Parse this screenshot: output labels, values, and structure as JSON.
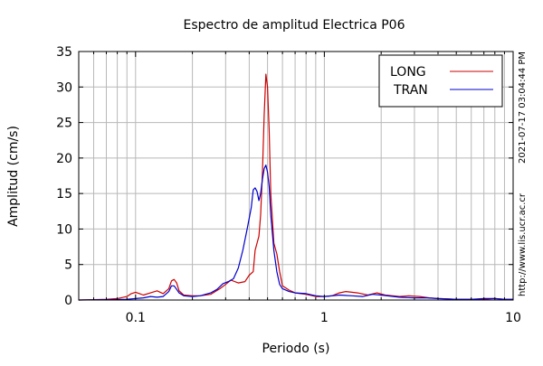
{
  "chart_data": {
    "type": "line",
    "title": "Espectro de amplitud Electrica P06",
    "xlabel": "Periodo (s)",
    "ylabel": "Amplitud (cm/s)",
    "x_scale": "log",
    "xlim": [
      0.05,
      10
    ],
    "ylim": [
      0,
      35
    ],
    "x_ticks": [
      0.1,
      1,
      10
    ],
    "x_tick_labels": [
      "0.1",
      "1",
      "10"
    ],
    "y_ticks": [
      0,
      5,
      10,
      15,
      20,
      25,
      30,
      35
    ],
    "y_tick_labels": [
      "0",
      "5",
      "10",
      "15",
      "20",
      "25",
      "30",
      "35"
    ],
    "grid": true,
    "legend_position": "top-right",
    "series": [
      {
        "name": "LONG",
        "color": "#cc0000",
        "points": [
          [
            0.05,
            0.0
          ],
          [
            0.06,
            0.05
          ],
          [
            0.07,
            0.1
          ],
          [
            0.08,
            0.2
          ],
          [
            0.09,
            0.5
          ],
          [
            0.095,
            0.9
          ],
          [
            0.1,
            1.1
          ],
          [
            0.105,
            0.9
          ],
          [
            0.11,
            0.7
          ],
          [
            0.12,
            1.0
          ],
          [
            0.13,
            1.3
          ],
          [
            0.14,
            0.9
          ],
          [
            0.15,
            1.6
          ],
          [
            0.155,
            2.7
          ],
          [
            0.16,
            2.9
          ],
          [
            0.165,
            2.4
          ],
          [
            0.17,
            1.3
          ],
          [
            0.18,
            0.7
          ],
          [
            0.2,
            0.6
          ],
          [
            0.22,
            0.6
          ],
          [
            0.25,
            0.8
          ],
          [
            0.28,
            1.6
          ],
          [
            0.3,
            2.2
          ],
          [
            0.32,
            2.8
          ],
          [
            0.35,
            2.4
          ],
          [
            0.38,
            2.6
          ],
          [
            0.4,
            3.5
          ],
          [
            0.42,
            4.0
          ],
          [
            0.43,
            7.0
          ],
          [
            0.44,
            8.0
          ],
          [
            0.45,
            9.0
          ],
          [
            0.46,
            12.0
          ],
          [
            0.47,
            18.0
          ],
          [
            0.48,
            26.0
          ],
          [
            0.49,
            31.8
          ],
          [
            0.5,
            30.0
          ],
          [
            0.51,
            24.0
          ],
          [
            0.52,
            15.0
          ],
          [
            0.54,
            8.0
          ],
          [
            0.56,
            6.5
          ],
          [
            0.58,
            4.0
          ],
          [
            0.6,
            2.0
          ],
          [
            0.65,
            1.4
          ],
          [
            0.7,
            1.0
          ],
          [
            0.8,
            0.8
          ],
          [
            0.9,
            0.5
          ],
          [
            1.0,
            0.5
          ],
          [
            1.1,
            0.6
          ],
          [
            1.2,
            1.0
          ],
          [
            1.3,
            1.2
          ],
          [
            1.4,
            1.1
          ],
          [
            1.5,
            1.0
          ],
          [
            1.7,
            0.7
          ],
          [
            1.9,
            1.0
          ],
          [
            2.1,
            0.7
          ],
          [
            2.5,
            0.5
          ],
          [
            2.8,
            0.6
          ],
          [
            3.2,
            0.5
          ],
          [
            3.6,
            0.3
          ],
          [
            4.0,
            0.2
          ],
          [
            5.0,
            0.1
          ],
          [
            6.0,
            0.1
          ],
          [
            7.0,
            0.1
          ],
          [
            8.0,
            0.2
          ],
          [
            9.0,
            0.1
          ],
          [
            10.0,
            0.1
          ]
        ]
      },
      {
        "name": "TRAN",
        "color": "#0000cc",
        "points": [
          [
            0.05,
            0.0
          ],
          [
            0.07,
            0.05
          ],
          [
            0.09,
            0.1
          ],
          [
            0.1,
            0.2
          ],
          [
            0.11,
            0.3
          ],
          [
            0.12,
            0.5
          ],
          [
            0.13,
            0.4
          ],
          [
            0.14,
            0.5
          ],
          [
            0.15,
            1.2
          ],
          [
            0.155,
            2.0
          ],
          [
            0.16,
            2.0
          ],
          [
            0.165,
            1.5
          ],
          [
            0.17,
            1.0
          ],
          [
            0.18,
            0.6
          ],
          [
            0.2,
            0.5
          ],
          [
            0.22,
            0.6
          ],
          [
            0.25,
            1.0
          ],
          [
            0.27,
            1.5
          ],
          [
            0.29,
            2.3
          ],
          [
            0.31,
            2.6
          ],
          [
            0.33,
            3.0
          ],
          [
            0.35,
            4.5
          ],
          [
            0.37,
            7.0
          ],
          [
            0.39,
            10.0
          ],
          [
            0.41,
            13.0
          ],
          [
            0.42,
            15.5
          ],
          [
            0.43,
            15.8
          ],
          [
            0.44,
            15.3
          ],
          [
            0.45,
            14.0
          ],
          [
            0.46,
            15.0
          ],
          [
            0.47,
            17.0
          ],
          [
            0.48,
            18.5
          ],
          [
            0.49,
            19.0
          ],
          [
            0.5,
            18.0
          ],
          [
            0.51,
            16.0
          ],
          [
            0.52,
            12.0
          ],
          [
            0.54,
            7.0
          ],
          [
            0.56,
            4.0
          ],
          [
            0.58,
            2.2
          ],
          [
            0.6,
            1.6
          ],
          [
            0.65,
            1.2
          ],
          [
            0.7,
            1.0
          ],
          [
            0.8,
            0.9
          ],
          [
            0.9,
            0.6
          ],
          [
            1.0,
            0.5
          ],
          [
            1.2,
            0.7
          ],
          [
            1.4,
            0.6
          ],
          [
            1.6,
            0.5
          ],
          [
            1.8,
            0.8
          ],
          [
            2.0,
            0.7
          ],
          [
            2.5,
            0.4
          ],
          [
            3.0,
            0.3
          ],
          [
            3.5,
            0.3
          ],
          [
            4.0,
            0.2
          ],
          [
            5.0,
            0.1
          ],
          [
            6.0,
            0.1
          ],
          [
            7.0,
            0.2
          ],
          [
            8.0,
            0.2
          ],
          [
            9.0,
            0.1
          ],
          [
            10.0,
            0.1
          ]
        ]
      }
    ]
  },
  "side_texts": {
    "timestamp": "2021-07-17 03:04:44 PM",
    "url": "http://www.lis.ucr.ac.cr"
  }
}
